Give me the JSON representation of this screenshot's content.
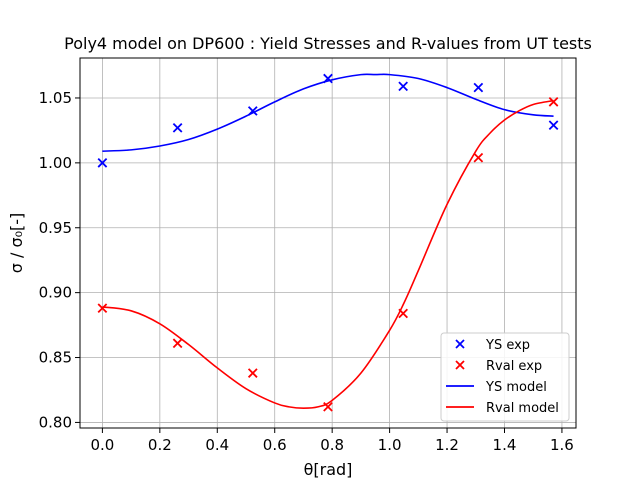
{
  "chart_data": {
    "type": "scatter",
    "title": "Poly4 model on DP600 : Yield Stresses and R-values from UT tests",
    "xlabel": "θ[rad]",
    "ylabel": "σ / σ₀[-]",
    "xlim": [
      -0.078,
      1.649
    ],
    "ylim": [
      0.7957,
      1.0808
    ],
    "grid": true,
    "legend_position": "lower-right",
    "x_ticks": [
      0.0,
      0.2,
      0.4,
      0.6,
      0.8,
      1.0,
      1.2,
      1.4,
      1.6
    ],
    "x_tick_labels": [
      "0.0",
      "0.2",
      "0.4",
      "0.6",
      "0.8",
      "1.0",
      "1.2",
      "1.4",
      "1.6"
    ],
    "y_ticks": [
      0.8,
      0.85,
      0.9,
      0.95,
      1.0,
      1.05
    ],
    "y_tick_labels": [
      "0.80",
      "0.85",
      "0.90",
      "0.95",
      "1.00",
      "1.05"
    ],
    "series": [
      {
        "name": "YS exp",
        "kind": "scatter",
        "marker": "x",
        "color": "#0000ff",
        "x": [
          0.0,
          0.2618,
          0.5236,
          0.7854,
          1.0472,
          1.309,
          1.5708
        ],
        "y": [
          1.0,
          1.027,
          1.04,
          1.065,
          1.059,
          1.058,
          1.029
        ]
      },
      {
        "name": "Rval exp",
        "kind": "scatter",
        "marker": "x",
        "color": "#ff0000",
        "x": [
          0.0,
          0.2618,
          0.5236,
          0.7854,
          1.0472,
          1.309,
          1.5708
        ],
        "y": [
          0.888,
          0.861,
          0.838,
          0.812,
          0.884,
          1.004,
          1.047
        ]
      },
      {
        "name": "YS model",
        "kind": "line",
        "color": "#0000ff",
        "x": [
          0.0,
          0.1,
          0.2,
          0.3,
          0.4,
          0.5,
          0.6,
          0.7,
          0.8,
          0.9,
          0.95,
          1.0,
          1.1,
          1.2,
          1.3,
          1.4,
          1.5,
          1.5708
        ],
        "y": [
          1.009,
          1.01,
          1.013,
          1.018,
          1.026,
          1.036,
          1.047,
          1.057,
          1.064,
          1.068,
          1.068,
          1.068,
          1.065,
          1.058,
          1.049,
          1.041,
          1.037,
          1.036
        ]
      },
      {
        "name": "Rval model",
        "kind": "line",
        "color": "#ff0000",
        "x": [
          0.0,
          0.1,
          0.2,
          0.3,
          0.4,
          0.5,
          0.6,
          0.65,
          0.7,
          0.75,
          0.8,
          0.9,
          1.0,
          1.05,
          1.1,
          1.2,
          1.3,
          1.35,
          1.4,
          1.45,
          1.5,
          1.5708
        ],
        "y": [
          0.889,
          0.886,
          0.876,
          0.86,
          0.842,
          0.826,
          0.815,
          0.812,
          0.811,
          0.812,
          0.817,
          0.838,
          0.871,
          0.892,
          0.917,
          0.968,
          1.009,
          1.023,
          1.033,
          1.04,
          1.045,
          1.048
        ]
      }
    ]
  }
}
